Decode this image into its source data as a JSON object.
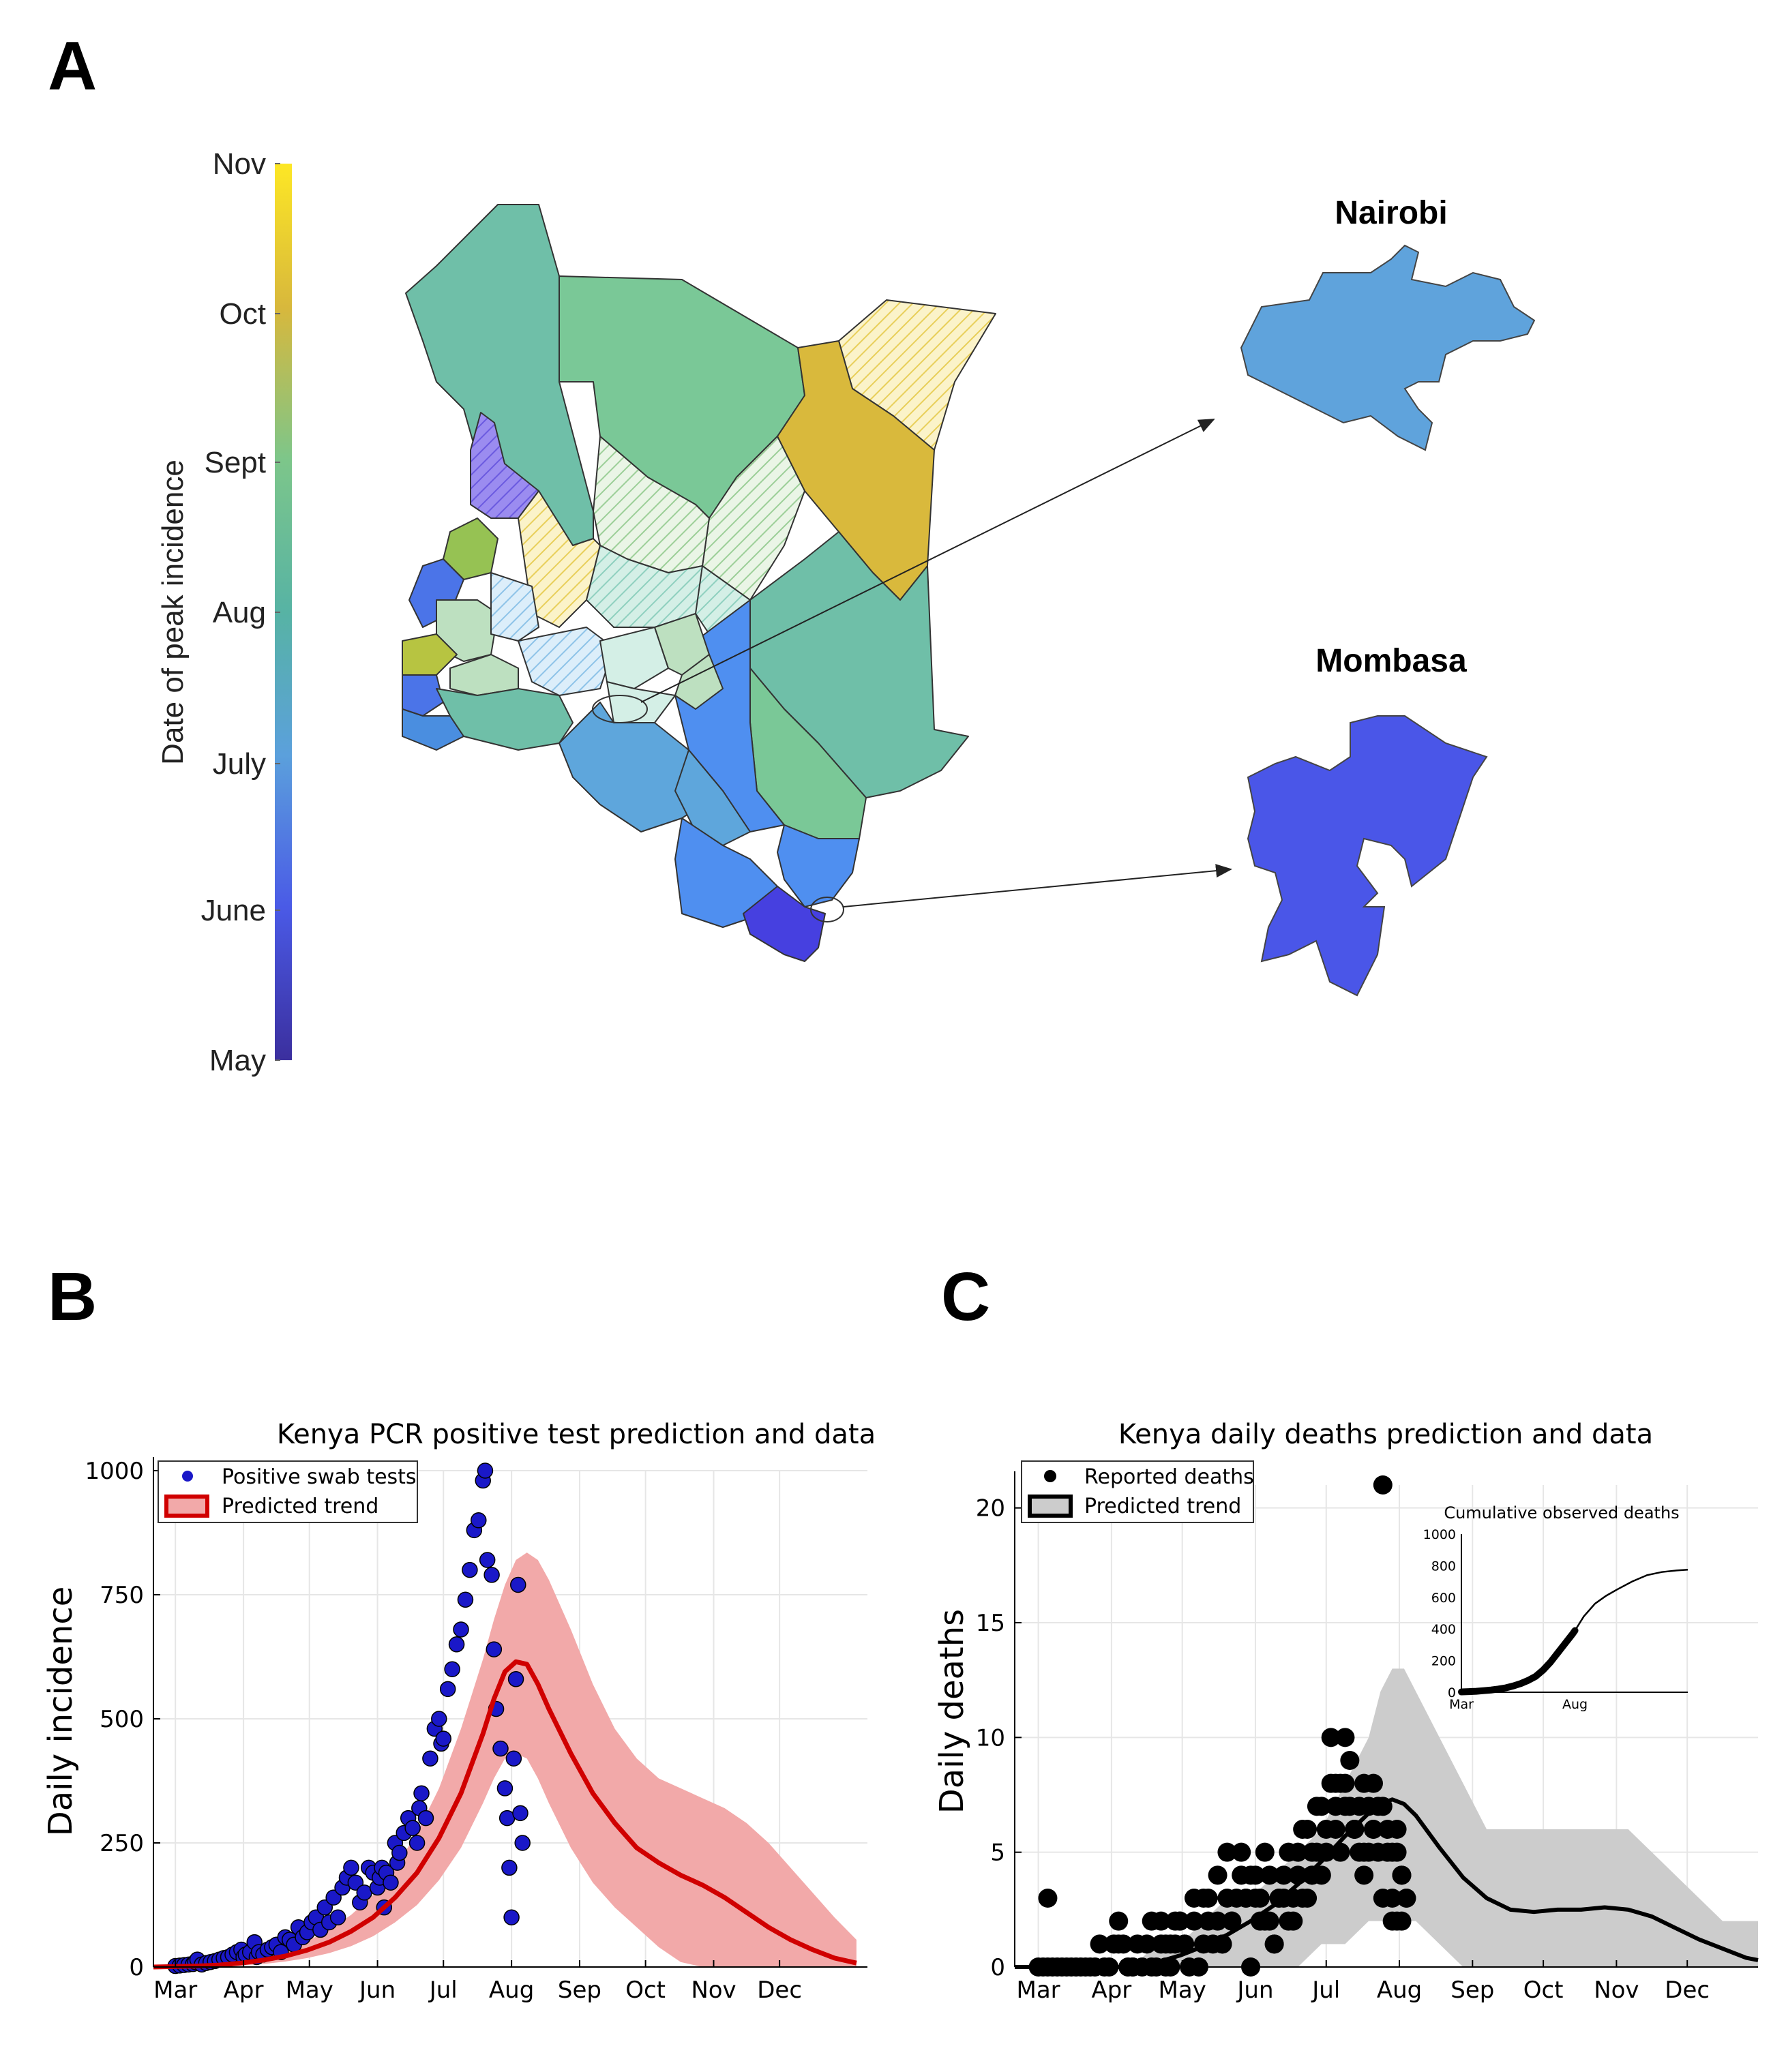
{
  "panels": {
    "a": "A",
    "b": "B",
    "c": "C"
  },
  "map": {
    "colorbar_label": "Date of peak incidence",
    "colorbar_ticks": [
      "Nov",
      "Oct",
      "Sept",
      "Aug",
      "July",
      "June",
      "May"
    ],
    "colorbar_colors": [
      "#fde725",
      "#d8b83c",
      "#7dc68a",
      "#57b3a4",
      "#5ba0dc",
      "#4a5ae6",
      "#3b2f9e"
    ],
    "insets": [
      {
        "title": "Nairobi",
        "color": "#5fa3dc"
      },
      {
        "title": "Mombasa",
        "color": "#4a56e8"
      }
    ]
  },
  "chart_data": [
    {
      "type": "scatter",
      "title": "Kenya PCR positive test prediction and data",
      "xlabel": "",
      "ylabel": "Daily incidence",
      "x_tick_labels": [
        "Mar",
        "Apr",
        "May",
        "Jun",
        "Jul",
        "Aug",
        "Sep",
        "Oct",
        "Nov",
        "Dec"
      ],
      "x_tick_days": [
        10,
        41,
        71,
        102,
        132,
        163,
        194,
        224,
        255,
        285
      ],
      "xlim_days": [
        0,
        325
      ],
      "ylim": [
        0,
        1000
      ],
      "y_ticks": [
        0,
        250,
        500,
        750,
        1000
      ],
      "legend": {
        "position": "top-left",
        "entries": [
          "Positive swab tests",
          "Predicted trend"
        ]
      },
      "grid": true,
      "colors": {
        "points": "#1a18c8",
        "trend": "#d00000",
        "band": "#f2a9a9"
      },
      "series": [
        {
          "name": "Positive swab tests",
          "kind": "scatter",
          "day": [
            10,
            12,
            14,
            16,
            18,
            19,
            20,
            22,
            24,
            26,
            28,
            30,
            32,
            34,
            36,
            38,
            40,
            41,
            42,
            44,
            46,
            47,
            48,
            50,
            52,
            54,
            56,
            58,
            60,
            62,
            64,
            66,
            68,
            70,
            72,
            74,
            76,
            78,
            80,
            82,
            84,
            86,
            88,
            90,
            92,
            94,
            96,
            98,
            100,
            102,
            103,
            104,
            105,
            106,
            108,
            110,
            111,
            112,
            114,
            116,
            118,
            120,
            121,
            122,
            124,
            126,
            128,
            130,
            131,
            132,
            134,
            136,
            138,
            140,
            142,
            144,
            146,
            148,
            150,
            151,
            152,
            154,
            155,
            156,
            158,
            160,
            161,
            162,
            163,
            164,
            165,
            166,
            167,
            168
          ],
          "value": [
            2,
            3,
            4,
            5,
            6,
            10,
            15,
            5,
            8,
            10,
            12,
            15,
            18,
            20,
            25,
            30,
            35,
            20,
            25,
            30,
            50,
            20,
            30,
            25,
            35,
            40,
            45,
            30,
            60,
            55,
            45,
            80,
            60,
            70,
            90,
            100,
            75,
            120,
            90,
            140,
            100,
            160,
            180,
            200,
            170,
            130,
            150,
            200,
            190,
            160,
            180,
            200,
            120,
            190,
            170,
            250,
            210,
            230,
            270,
            300,
            280,
            250,
            320,
            350,
            300,
            420,
            480,
            500,
            450,
            460,
            560,
            600,
            650,
            680,
            740,
            800,
            880,
            900,
            980,
            1000,
            820,
            790,
            640,
            520,
            440,
            360,
            300,
            200,
            100,
            420,
            580,
            770,
            310,
            250
          ]
        },
        {
          "name": "Predicted trend",
          "kind": "line",
          "day": [
            0,
            10,
            20,
            30,
            40,
            50,
            60,
            70,
            80,
            90,
            100,
            110,
            120,
            130,
            140,
            150,
            155,
            160,
            165,
            170,
            175,
            180,
            190,
            200,
            210,
            220,
            230,
            240,
            250,
            260,
            270,
            280,
            290,
            300,
            310,
            320
          ],
          "value": [
            0,
            1,
            2,
            4,
            8,
            14,
            22,
            34,
            50,
            72,
            100,
            140,
            190,
            260,
            350,
            470,
            540,
            595,
            615,
            610,
            570,
            520,
            430,
            350,
            290,
            240,
            210,
            185,
            165,
            140,
            110,
            80,
            55,
            35,
            18,
            8
          ],
          "lower": [
            0,
            0,
            0,
            1,
            3,
            6,
            11,
            18,
            28,
            42,
            62,
            90,
            125,
            175,
            240,
            330,
            380,
            420,
            430,
            420,
            380,
            330,
            240,
            170,
            120,
            80,
            40,
            10,
            0,
            0,
            0,
            0,
            0,
            0,
            0,
            0
          ],
          "upper": [
            0,
            2,
            4,
            8,
            14,
            24,
            36,
            52,
            75,
            105,
            145,
            200,
            270,
            360,
            480,
            620,
            700,
            770,
            820,
            835,
            820,
            780,
            680,
            570,
            480,
            420,
            380,
            360,
            340,
            320,
            290,
            250,
            200,
            150,
            100,
            55
          ]
        }
      ]
    },
    {
      "type": "scatter",
      "title": "Kenya daily deaths prediction and data",
      "xlabel": "",
      "ylabel": "Daily deaths",
      "x_tick_labels": [
        "Mar",
        "Apr",
        "May",
        "Jun",
        "Jul",
        "Aug",
        "Sep",
        "Oct",
        "Nov",
        "Dec"
      ],
      "x_tick_days": [
        10,
        41,
        71,
        102,
        132,
        163,
        194,
        224,
        255,
        285
      ],
      "xlim_days": [
        0,
        315
      ],
      "ylim": [
        0,
        21
      ],
      "y_ticks": [
        0,
        5,
        10,
        15,
        20
      ],
      "legend": {
        "position": "top-left",
        "entries": [
          "Reported deaths",
          "Predicted trend"
        ]
      },
      "grid": true,
      "colors": {
        "points": "#000000",
        "trend": "#000000",
        "band": "#cccccc"
      },
      "series": [
        {
          "name": "Reported deaths",
          "kind": "scatter",
          "day": [
            10,
            12,
            14,
            16,
            18,
            20,
            22,
            24,
            26,
            28,
            30,
            32,
            34,
            36,
            38,
            40,
            42,
            44,
            46,
            48,
            50,
            52,
            54,
            56,
            58,
            60,
            62,
            64,
            66,
            68,
            70,
            72,
            74,
            76,
            78,
            80,
            82,
            84,
            86,
            88,
            90,
            92,
            94,
            96,
            98,
            100,
            102,
            104,
            106,
            108,
            110,
            112,
            114,
            116,
            118,
            120,
            122,
            124,
            126,
            128,
            130,
            132,
            134,
            136,
            138,
            140,
            142,
            144,
            146,
            148,
            150,
            152,
            154,
            156,
            158,
            160,
            162,
            164,
            166,
            14,
            44,
            50,
            64,
            68,
            72,
            80,
            86,
            90,
            96,
            100,
            104,
            108,
            112,
            116,
            120,
            124,
            126,
            128,
            130,
            134,
            136,
            138,
            140,
            142,
            144,
            146,
            148,
            150,
            152,
            154,
            156,
            158,
            160,
            162,
            164,
            166,
            58,
            62,
            66,
            70,
            76,
            82,
            88,
            92,
            98,
            102,
            106,
            110,
            114,
            118,
            122,
            126,
            132,
            136,
            140,
            144,
            148,
            152,
            156,
            160,
            164,
            162
          ],
          "value": [
            0,
            0,
            0,
            0,
            0,
            0,
            0,
            0,
            0,
            0,
            0,
            0,
            0,
            1,
            0,
            0,
            1,
            1,
            1,
            0,
            0,
            1,
            0,
            1,
            0,
            0,
            1,
            1,
            0,
            1,
            2,
            1,
            0,
            2,
            0,
            1,
            3,
            1,
            2,
            1,
            3,
            2,
            3,
            5,
            3,
            4,
            3,
            2,
            5,
            4,
            1,
            3,
            4,
            5,
            3,
            4,
            3,
            6,
            5,
            7,
            4,
            6,
            8,
            7,
            8,
            10,
            9,
            6,
            7,
            8,
            5,
            8,
            7,
            21,
            6,
            5,
            6,
            4,
            3,
            3,
            2,
            0,
            0,
            2,
            1,
            3,
            4,
            5,
            4,
            0,
            3,
            2,
            3,
            2,
            5,
            3,
            4,
            5,
            7,
            10,
            6,
            5,
            8,
            7,
            6,
            5,
            4,
            7,
            6,
            5,
            7,
            5,
            3,
            2,
            4,
            3,
            2,
            2,
            1,
            2,
            3,
            2,
            1,
            2,
            3,
            4,
            2,
            1,
            3,
            2,
            6,
            4,
            5,
            8,
            7,
            6,
            5,
            6,
            3,
            2,
            2,
            5
          ]
        },
        {
          "name": "Predicted trend",
          "kind": "line",
          "day": [
            0,
            10,
            20,
            30,
            40,
            50,
            60,
            70,
            80,
            90,
            100,
            110,
            120,
            130,
            140,
            150,
            155,
            160,
            165,
            170,
            180,
            190,
            200,
            210,
            220,
            230,
            240,
            250,
            260,
            270,
            280,
            290,
            300,
            310,
            315
          ],
          "value": [
            0,
            0,
            0,
            0,
            0,
            0,
            0.2,
            0.5,
            0.9,
            1.4,
            2.0,
            2.7,
            3.6,
            4.6,
            5.7,
            6.7,
            7.1,
            7.3,
            7.1,
            6.6,
            5.2,
            3.9,
            3.0,
            2.5,
            2.4,
            2.5,
            2.5,
            2.6,
            2.5,
            2.2,
            1.7,
            1.2,
            0.8,
            0.4,
            0.3
          ],
          "lower": [
            0,
            0,
            0,
            0,
            0,
            0,
            0,
            0,
            0,
            0,
            0,
            0,
            0,
            1,
            1,
            2,
            2,
            2,
            2,
            2,
            1,
            0,
            0,
            0,
            0,
            0,
            0,
            0,
            0,
            0,
            0,
            0,
            0,
            0,
            0
          ],
          "upper": [
            0,
            0,
            0,
            0,
            0,
            0,
            1,
            1,
            2,
            3,
            3,
            4,
            5,
            6,
            8,
            10,
            12,
            13,
            13,
            12,
            10,
            8,
            6,
            6,
            6,
            6,
            6,
            6,
            6,
            5,
            4,
            3,
            2,
            2,
            2
          ]
        }
      ],
      "inset": {
        "type": "line",
        "title": "Cumulative observed deaths",
        "x_tick_labels": [
          "Mar",
          "Aug"
        ],
        "ylim": [
          0,
          1000
        ],
        "y_ticks": [
          0,
          200,
          400,
          600,
          800,
          1000
        ],
        "observed_day": [
          10,
          20,
          30,
          40,
          50,
          60,
          70,
          80,
          90,
          100,
          110,
          120,
          130,
          140,
          150,
          155,
          160,
          163
        ],
        "observed_value": [
          2,
          4,
          6,
          10,
          14,
          20,
          28,
          40,
          55,
          75,
          100,
          140,
          190,
          250,
          310,
          340,
          370,
          390
        ],
        "trend_day": [
          163,
          175,
          190,
          205,
          220,
          240,
          260,
          280,
          300,
          315
        ],
        "trend_value": [
          390,
          480,
          560,
          610,
          650,
          700,
          740,
          760,
          770,
          775
        ]
      }
    }
  ]
}
